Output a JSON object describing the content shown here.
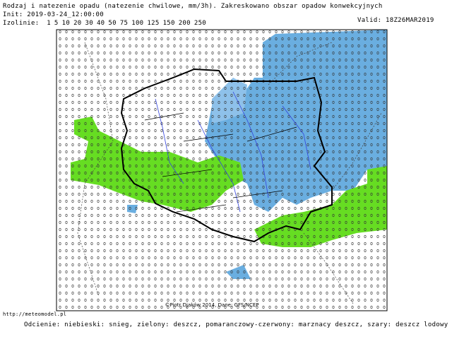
{
  "header": {
    "title": "Rodzaj i natezenie opadu (natezenie chwilowe, mm/3h). Zakreskowano obszar opadow konwekcyjnych",
    "init": "Init: 2019-03-24_12:00:00",
    "valid": "Valid: 18Z26MAR2019",
    "isolines": {
      "label": "Izolinie:",
      "values": [
        1,
        5,
        10,
        20,
        30,
        40,
        50,
        75,
        100,
        125,
        150,
        200,
        250
      ]
    }
  },
  "map": {
    "credit": "©Piotr Djaków 2014, Dane: GFS/NCEP"
  },
  "footer": {
    "url": "http://meteomodel.pl",
    "legend": "Odcienie: niebieski: snieg, zielony: deszcz, pomaranczowy-czerwony: marznacy deszcz, szary: deszcz lodowy"
  }
}
